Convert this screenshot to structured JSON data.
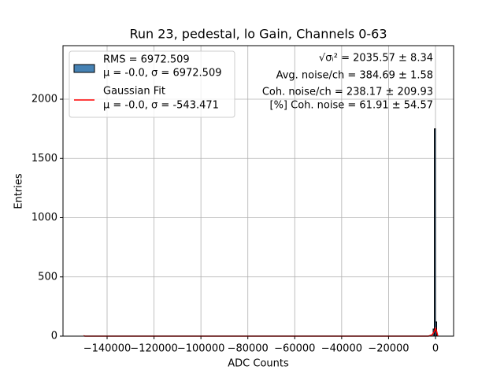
{
  "chart_data": {
    "type": "histogram",
    "title": "Run 23, pedestal, lo Gain, Channels 0-63",
    "x_label": "ADC Counts",
    "y_label": "Entries",
    "bins": [
      -1000,
      -500,
      0,
      500
    ],
    "counts": [
      60,
      1750,
      120
    ],
    "hist_color": "#4682b4",
    "hist_edge": "#000000",
    "hist_legend": {
      "name": "RMS = 6972.509",
      "detail": "μ = -0.0, σ = 6972.509"
    },
    "fit": {
      "name": "Gaussian Fit",
      "detail": "μ = -0.0, σ = -543.471",
      "color": "#ff0000",
      "x": [
        -150000,
        -149500,
        -149000,
        -100000,
        -50000,
        -3000,
        -1500,
        -500,
        0,
        500,
        1000
      ],
      "values": [
        5,
        0,
        0,
        0,
        0,
        0,
        10,
        40,
        65,
        40,
        0
      ]
    },
    "annotations": [
      "√σᵢ² = 2035.57 ± 8.34",
      "Avg. noise/ch = 384.69 ± 1.58",
      "Coh. noise/ch = 238.17 ± 209.93",
      "[%] Coh. noise = 61.91 ± 54.57"
    ],
    "xlim": [
      -158800,
      7720
    ],
    "ylim": [
      0,
      2452
    ],
    "xticks": [
      {
        "value": -140000,
        "label": "−140000"
      },
      {
        "value": -120000,
        "label": "−120000"
      },
      {
        "value": -100000,
        "label": "−100000"
      },
      {
        "value": -80000,
        "label": "−80000"
      },
      {
        "value": -60000,
        "label": "−60000"
      },
      {
        "value": -40000,
        "label": "−40000"
      },
      {
        "value": -20000,
        "label": "−20000"
      },
      0
    ],
    "yticks": [
      0,
      500,
      1000,
      1500,
      2000
    ],
    "grid": true
  }
}
